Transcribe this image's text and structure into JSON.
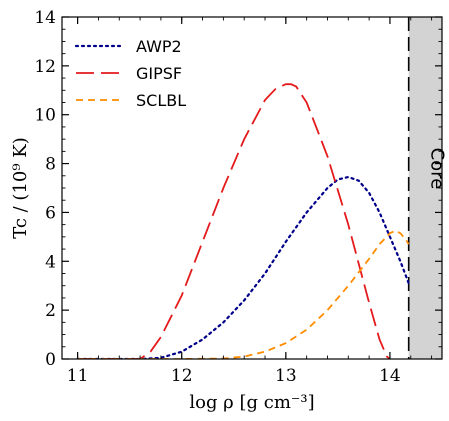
{
  "chart_data": {
    "type": "line",
    "xlabel": "log ρ  [g cm⁻³]",
    "ylabel": "Tc / (10⁹ K)",
    "xlim": [
      10.85,
      14.5
    ],
    "ylim": [
      0,
      14
    ],
    "x_ticks": [
      11,
      12,
      13,
      14
    ],
    "y_ticks": [
      0,
      2,
      4,
      6,
      8,
      10,
      12,
      14
    ],
    "legend_position": "top-left",
    "series": [
      {
        "name": "AWP2",
        "color": "#00008b",
        "style": "dotted",
        "x": [
          11.0,
          11.6,
          11.8,
          12.0,
          12.2,
          12.4,
          12.6,
          12.8,
          13.0,
          13.2,
          13.4,
          13.5,
          13.6,
          13.7,
          13.8,
          13.9,
          14.0,
          14.1,
          14.18
        ],
        "y": [
          0.0,
          0.0,
          0.05,
          0.3,
          0.8,
          1.5,
          2.4,
          3.5,
          4.8,
          6.0,
          7.0,
          7.35,
          7.45,
          7.3,
          6.8,
          6.0,
          5.0,
          4.0,
          3.1
        ]
      },
      {
        "name": "GIPSF",
        "color": "#e41a1c",
        "style": "long-dashed",
        "x": [
          11.0,
          11.6,
          11.7,
          11.8,
          12.0,
          12.2,
          12.4,
          12.6,
          12.8,
          12.9,
          13.0,
          13.05,
          13.1,
          13.2,
          13.4,
          13.6,
          13.8,
          13.9,
          13.97,
          14.0
        ],
        "y": [
          0.0,
          0.0,
          0.3,
          0.9,
          2.6,
          4.8,
          7.0,
          9.0,
          10.6,
          11.05,
          11.25,
          11.25,
          11.15,
          10.5,
          8.3,
          5.5,
          2.3,
          0.8,
          0.1,
          0.0
        ]
      },
      {
        "name": "SCLBL",
        "color": "#ff8c00",
        "style": "dashed",
        "x": [
          11.0,
          12.0,
          12.4,
          12.6,
          12.8,
          13.0,
          13.2,
          13.4,
          13.6,
          13.8,
          13.9,
          14.0,
          14.05,
          14.1,
          14.15,
          14.18
        ],
        "y": [
          0.0,
          0.0,
          0.02,
          0.1,
          0.3,
          0.65,
          1.2,
          2.0,
          3.0,
          4.1,
          4.7,
          5.15,
          5.25,
          5.15,
          4.9,
          4.7
        ]
      }
    ],
    "core_region": {
      "label": "Core",
      "x_start": 14.18,
      "color": "#d3d3d3"
    }
  }
}
